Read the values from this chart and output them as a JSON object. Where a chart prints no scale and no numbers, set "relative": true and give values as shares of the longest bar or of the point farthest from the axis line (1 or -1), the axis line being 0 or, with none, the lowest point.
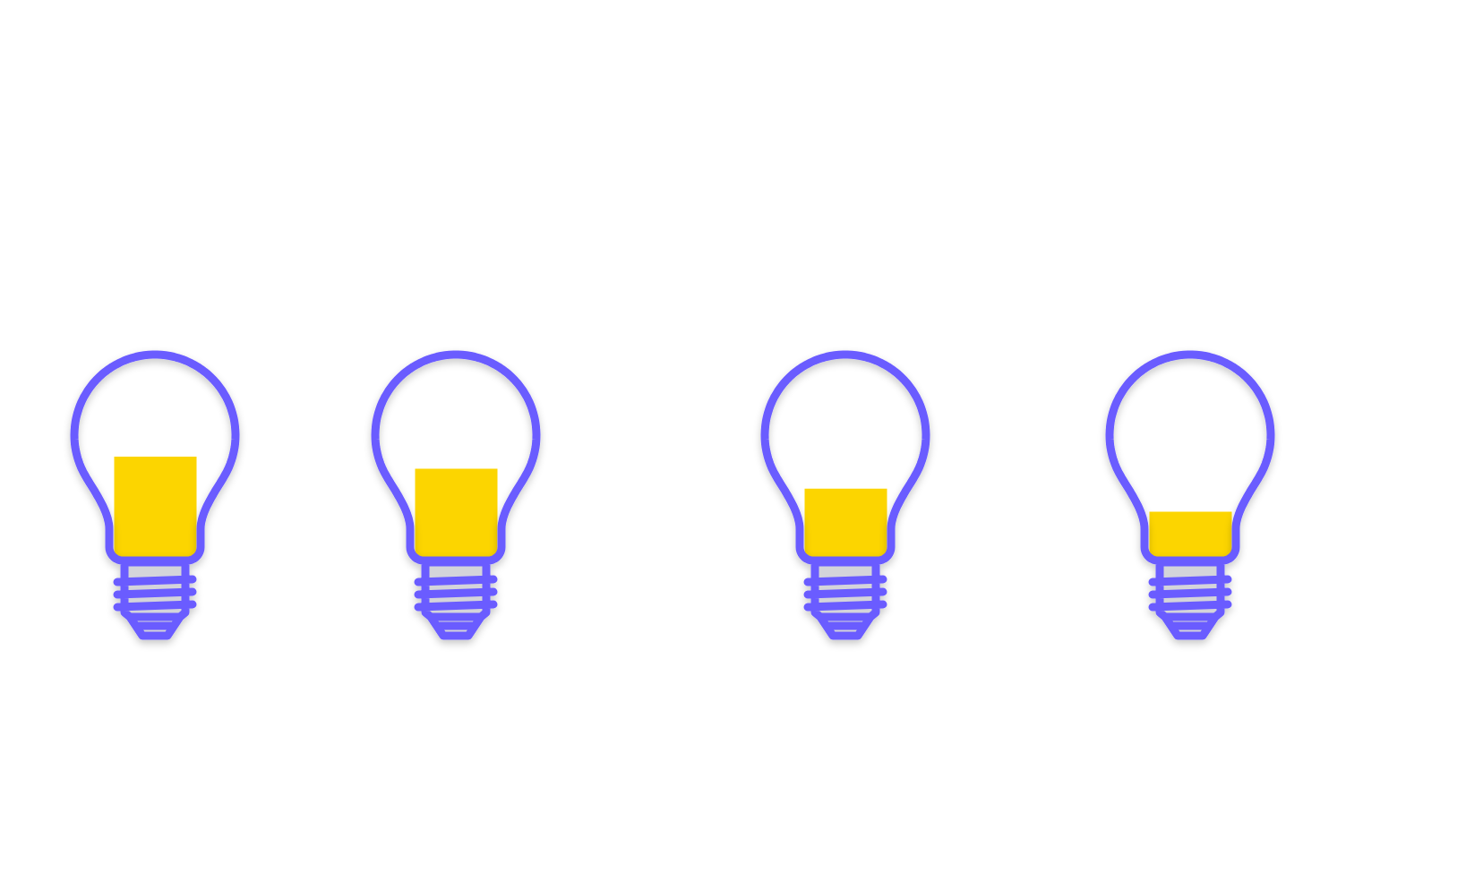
{
  "chart_data": {
    "type": "bar",
    "relative": true,
    "categories": [
      null,
      null,
      null,
      null
    ],
    "values": [
      1,
      0.88,
      0.68,
      0.45
    ],
    "color": "#fcd500"
  }
}
